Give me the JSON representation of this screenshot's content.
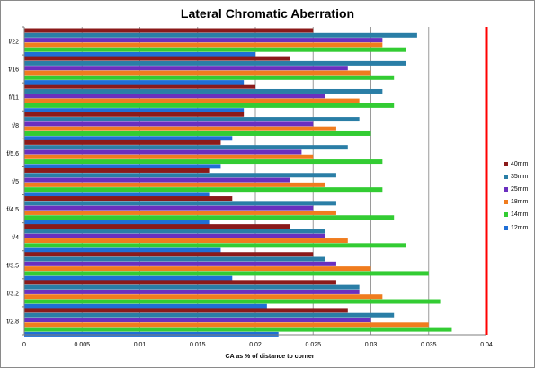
{
  "chart_data": {
    "type": "bar",
    "orientation": "horizontal",
    "title": "Lateral Chromatic Aberration",
    "xlabel": "CA as % of distance  to corner",
    "ylabel": "",
    "xlim": [
      0,
      0.04
    ],
    "x_ticks": [
      "0",
      "0.005",
      "0.01",
      "0.015",
      "0.02",
      "0.025",
      "0.03",
      "0.035",
      "0.04"
    ],
    "grid": true,
    "legend_position": "right",
    "reference_line": {
      "value": 0.04,
      "color": "#ff0000"
    },
    "categories": [
      "f/22",
      "f/16",
      "f/11",
      "f/8",
      "f/5.6",
      "f/5",
      "f/4.5",
      "f/4",
      "f/3.5",
      "f/3.2",
      "f/2.8"
    ],
    "series": [
      {
        "name": "40mm",
        "color": "#8b1a1a",
        "values": [
          0.025,
          0.023,
          0.02,
          0.019,
          0.017,
          0.016,
          0.018,
          0.023,
          0.025,
          0.027,
          0.028
        ]
      },
      {
        "name": "35mm",
        "color": "#2a7ea6",
        "values": [
          0.034,
          0.033,
          0.031,
          0.029,
          0.028,
          0.027,
          0.027,
          0.026,
          0.026,
          0.029,
          0.032
        ]
      },
      {
        "name": "25mm",
        "color": "#6a2fbf",
        "values": [
          0.031,
          0.028,
          0.026,
          0.025,
          0.024,
          0.023,
          0.025,
          0.026,
          0.027,
          0.029,
          0.03
        ]
      },
      {
        "name": "18mm",
        "color": "#f07c1e",
        "values": [
          0.031,
          0.03,
          0.029,
          0.027,
          0.025,
          0.026,
          0.027,
          0.028,
          0.03,
          0.031,
          0.035
        ]
      },
      {
        "name": "14mm",
        "color": "#33cc33",
        "values": [
          0.033,
          0.032,
          0.032,
          0.03,
          0.031,
          0.031,
          0.032,
          0.033,
          0.035,
          0.036,
          0.037
        ]
      },
      {
        "name": "12mm",
        "color": "#1f6fd6",
        "values": [
          0.02,
          0.019,
          0.019,
          0.018,
          0.017,
          0.016,
          0.016,
          0.017,
          0.018,
          0.021,
          0.022
        ]
      }
    ]
  }
}
